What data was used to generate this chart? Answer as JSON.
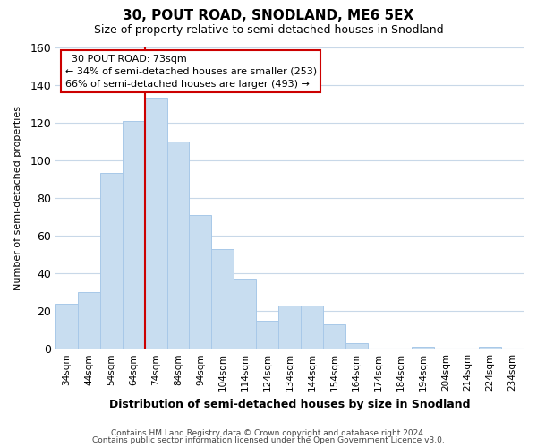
{
  "title": "30, POUT ROAD, SNODLAND, ME6 5EX",
  "subtitle": "Size of property relative to semi-detached houses in Snodland",
  "xlabel": "Distribution of semi-detached houses by size in Snodland",
  "ylabel": "Number of semi-detached properties",
  "bar_color": "#c8ddf0",
  "bar_edge_color": "#a8c8e8",
  "categories": [
    "34sqm",
    "44sqm",
    "54sqm",
    "64sqm",
    "74sqm",
    "84sqm",
    "94sqm",
    "104sqm",
    "114sqm",
    "124sqm",
    "134sqm",
    "144sqm",
    "154sqm",
    "164sqm",
    "174sqm",
    "184sqm",
    "194sqm",
    "204sqm",
    "214sqm",
    "224sqm",
    "234sqm"
  ],
  "values": [
    24,
    30,
    93,
    121,
    133,
    110,
    71,
    53,
    37,
    15,
    23,
    23,
    13,
    3,
    0,
    0,
    1,
    0,
    0,
    1,
    0
  ],
  "annotation_title": "30 POUT ROAD: 73sqm",
  "annotation_line1": "← 34% of semi-detached houses are smaller (253)",
  "annotation_line2": "66% of semi-detached houses are larger (493) →",
  "annotation_box_color": "#ffffff",
  "annotation_border_color": "#cc0000",
  "ylim": [
    0,
    160
  ],
  "yticks": [
    0,
    20,
    40,
    60,
    80,
    100,
    120,
    140,
    160
  ],
  "vline_color": "#cc0000",
  "vline_bin_index": 4,
  "footer1": "Contains HM Land Registry data © Crown copyright and database right 2024.",
  "footer2": "Contains public sector information licensed under the Open Government Licence v3.0.",
  "background_color": "#ffffff",
  "grid_color": "#c8d8e8"
}
